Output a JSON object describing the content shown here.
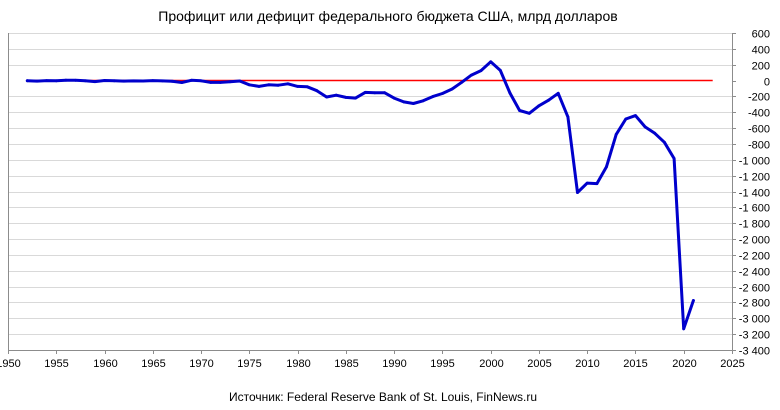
{
  "chart_data": {
    "type": "line",
    "title": "Профицит или дефицит федерального бюджета США, млрд долларов",
    "source": "Источник: Federal Reserve Bank of St. Louis, FinNews.ru",
    "xlim": [
      1950,
      2025
    ],
    "ylim": [
      -3400,
      600
    ],
    "x_ticks": [
      1950,
      1955,
      1960,
      1965,
      1970,
      1975,
      1980,
      1985,
      1990,
      1995,
      2000,
      2005,
      2010,
      2015,
      2020,
      2025
    ],
    "x_tick_labels": [
      "1950",
      "1955",
      "1960",
      "1965",
      "1970",
      "1975",
      "1980",
      "1985",
      "1990",
      "1995",
      "2000",
      "2005",
      "2010",
      "2015",
      "2020",
      "2025"
    ],
    "y_ticks": [
      600,
      400,
      200,
      0,
      -200,
      -400,
      -600,
      -800,
      -1000,
      -1200,
      -1400,
      -1600,
      -1800,
      -2000,
      -2200,
      -2400,
      -2600,
      -2800,
      -3000,
      -3200,
      -3400
    ],
    "y_tick_labels": [
      "600",
      "400",
      "200",
      "0",
      "-200",
      "-400",
      "-600",
      "-800",
      "-1 000",
      "-1 200",
      "-1 400",
      "-1 600",
      "-1 800",
      "-2 000",
      "-2 200",
      "-2 400",
      "-2 600",
      "-2 800",
      "-3 000",
      "-3 200",
      "-3 400"
    ],
    "grid": "horizontal",
    "zero_line_color": "#ff0000",
    "series": [
      {
        "color": "#0000cc",
        "x": [
          1952,
          1953,
          1954,
          1955,
          1956,
          1957,
          1958,
          1959,
          1960,
          1961,
          1962,
          1963,
          1964,
          1965,
          1966,
          1967,
          1968,
          1969,
          1970,
          1971,
          1972,
          1973,
          1974,
          1975,
          1976,
          1977,
          1978,
          1979,
          1980,
          1981,
          1982,
          1983,
          1984,
          1985,
          1986,
          1987,
          1988,
          1989,
          1990,
          1991,
          1992,
          1993,
          1994,
          1995,
          1996,
          1997,
          1998,
          1999,
          2000,
          2001,
          2002,
          2003,
          2004,
          2005,
          2006,
          2007,
          2008,
          2009,
          2010,
          2011,
          2012,
          2013,
          2014,
          2015,
          2016,
          2017,
          2018,
          2019,
          2020,
          2021
        ],
        "y": [
          -2,
          -7,
          -1,
          -3,
          4,
          3,
          -3,
          -13,
          0,
          -3,
          -7,
          -5,
          -6,
          -1,
          -4,
          -9,
          -25,
          3,
          -3,
          -23,
          -23,
          -15,
          -6,
          -53,
          -74,
          -54,
          -59,
          -41,
          -74,
          -79,
          -128,
          -208,
          -185,
          -212,
          -221,
          -150,
          -155,
          -153,
          -221,
          -269,
          -290,
          -255,
          -203,
          -164,
          -107,
          -22,
          69,
          126,
          236,
          128,
          -158,
          -378,
          -413,
          -318,
          -248,
          -161,
          -459,
          -1413,
          -1294,
          -1300,
          -1087,
          -680,
          -485,
          -442,
          -585,
          -665,
          -779,
          -984,
          -3132,
          -2775
        ]
      }
    ]
  }
}
